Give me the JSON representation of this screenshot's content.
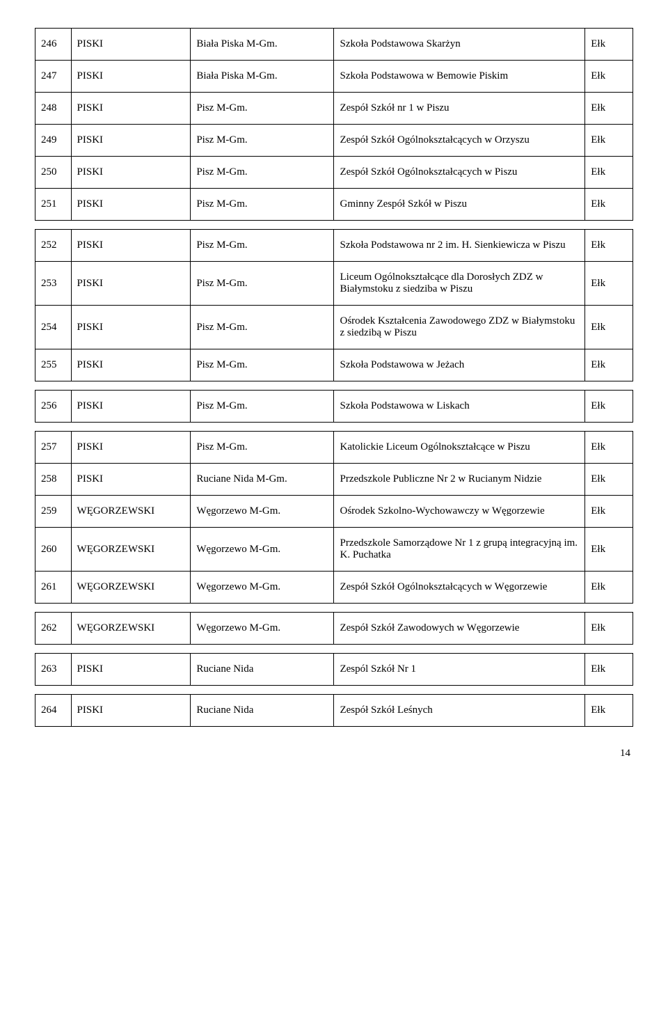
{
  "page_number": "14",
  "rows": [
    {
      "n": "246",
      "d": "PISKI",
      "g": "Biała Piska M-Gm.",
      "s": "Szkoła Podstawowa Skarżyn",
      "c": "Ełk"
    },
    {
      "n": "247",
      "d": "PISKI",
      "g": "Biała Piska M-Gm.",
      "s": "Szkoła Podstawowa w Bemowie Piskim",
      "c": "Ełk"
    },
    {
      "n": "248",
      "d": "PISKI",
      "g": "Pisz M-Gm.",
      "s": "Zespół Szkół nr 1 w Piszu",
      "c": "Ełk"
    },
    {
      "n": "249",
      "d": "PISKI",
      "g": "Pisz M-Gm.",
      "s": "Zespół Szkół Ogólnokształcących w Orzyszu",
      "c": "Ełk"
    },
    {
      "n": "250",
      "d": "PISKI",
      "g": "Pisz M-Gm.",
      "s": "Zespół Szkół Ogólnokształcących w Piszu",
      "c": "Ełk"
    },
    {
      "n": "251",
      "d": "PISKI",
      "g": "Pisz M-Gm.",
      "s": "Gminny Zespół Szkół w Piszu",
      "c": "Ełk"
    },
    {
      "n": "252",
      "d": "PISKI",
      "g": "Pisz M-Gm.",
      "s": "Szkoła Podstawowa  nr 2 im. H. Sienkiewicza w Piszu",
      "c": "Ełk"
    },
    {
      "n": "253",
      "d": "PISKI",
      "g": "Pisz M-Gm.",
      "s": "Liceum Ogólnokształcące dla Dorosłych ZDZ w Białymstoku z siedziba w Piszu",
      "c": "Ełk"
    },
    {
      "n": "254",
      "d": "PISKI",
      "g": "Pisz M-Gm.",
      "s": "Ośrodek Kształcenia Zawodowego ZDZ w Białymstoku z siedzibą w Piszu",
      "c": "Ełk"
    },
    {
      "n": "255",
      "d": "PISKI",
      "g": "Pisz M-Gm.",
      "s": "Szkoła Podstawowa w Jeżach",
      "c": "Ełk"
    },
    {
      "n": "256",
      "d": "PISKI",
      "g": "Pisz M-Gm.",
      "s": "Szkoła Podstawowa w Liskach",
      "c": "Ełk"
    },
    {
      "n": "257",
      "d": "PISKI",
      "g": "Pisz M-Gm.",
      "s": "Katolickie Liceum Ogólnokształcące w Piszu",
      "c": "Ełk"
    },
    {
      "n": "258",
      "d": "PISKI",
      "g": "Ruciane Nida M-Gm.",
      "s": "Przedszkole Publiczne Nr 2 w Rucianym Nidzie",
      "c": "Ełk"
    },
    {
      "n": "259",
      "d": "WĘGORZEWSKI",
      "g": "Węgorzewo M-Gm.",
      "s": "Ośrodek Szkolno-Wychowawczy w Węgorzewie",
      "c": "Ełk"
    },
    {
      "n": "260",
      "d": "WĘGORZEWSKI",
      "g": "Węgorzewo M-Gm.",
      "s": "Przedszkole Samorządowe Nr 1 z grupą integracyjną im. K. Puchatka",
      "c": "Ełk"
    },
    {
      "n": "261",
      "d": "WĘGORZEWSKI",
      "g": "Węgorzewo M-Gm.",
      "s": "Zespół Szkół Ogólnokształcących  w Węgorzewie",
      "c": "Ełk"
    },
    {
      "n": "262",
      "d": "WĘGORZEWSKI",
      "g": "Węgorzewo M-Gm.",
      "s": "Zespół Szkół Zawodowych w Węgorzewie",
      "c": "Ełk"
    },
    {
      "n": "263",
      "d": "PISKI",
      "g": "Ruciane Nida",
      "s": "Zespól Szkół  Nr 1",
      "c": "Ełk"
    },
    {
      "n": "264",
      "d": "PISKI",
      "g": "Ruciane Nida",
      "s": "Zespół Szkół Leśnych",
      "c": "Ełk"
    }
  ],
  "gaps_after": [
    5,
    9,
    10,
    15,
    16,
    17
  ],
  "style": {
    "font_family": "Times New Roman",
    "font_size_pt": 11,
    "border_color": "#000000",
    "background": "#ffffff",
    "text_color": "#000000"
  }
}
